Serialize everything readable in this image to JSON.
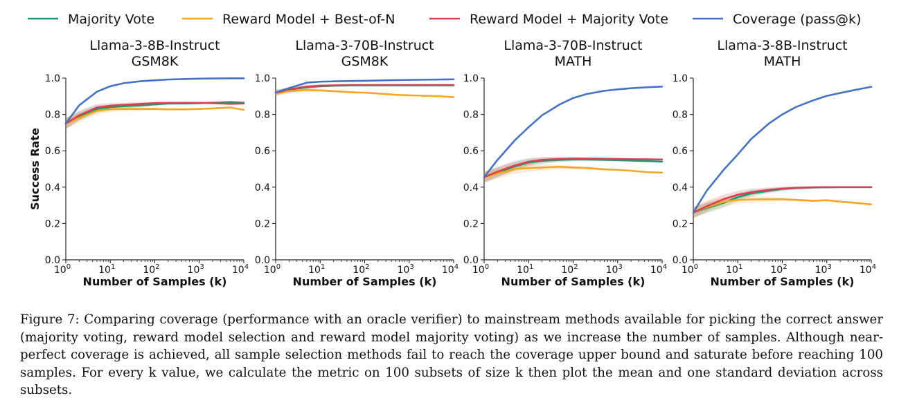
{
  "legend": [
    {
      "label": "Majority Vote",
      "color": "#1a9a71"
    },
    {
      "label": "Reward Model + Best-of-N",
      "color": "#f5a623"
    },
    {
      "label": "Reward Model + Majority Vote",
      "color": "#d94052"
    },
    {
      "label": "Coverage (pass@k)",
      "color": "#4472c4"
    }
  ],
  "caption": "Figure 7: Comparing coverage (performance with an oracle verifier) to mainstream methods available for picking the correct answer (majority voting, reward model selection and reward model majority voting) as we increase the number of samples. Although near-perfect coverage is achieved, all sample selection methods fail to reach the coverage upper bound and saturate before reaching 100 samples. For every k value, we calculate the metric on 100 subsets of size k then plot the mean and one standard deviation across subsets.",
  "chart_data": [
    {
      "type": "line",
      "title_line1": "Llama-3-8B-Instruct",
      "title_line2": "GSM8K",
      "xlabel": "Number of Samples (k)",
      "ylabel": "Success Rate",
      "xscale": "log",
      "xlim": [
        1,
        10000
      ],
      "ylim": [
        0,
        1
      ],
      "x": [
        1,
        2,
        5,
        10,
        20,
        50,
        100,
        200,
        500,
        1000,
        2000,
        5000,
        10000
      ],
      "series": [
        {
          "name": "Majority Vote",
          "color": "#1a9a71",
          "values": [
            0.75,
            0.79,
            0.83,
            0.84,
            0.845,
            0.85,
            0.855,
            0.86,
            0.86,
            0.862,
            0.865,
            0.868,
            0.865
          ],
          "std": [
            0.03,
            0.025,
            0.02,
            0.015,
            0.012,
            0.01,
            0.008,
            0.006,
            0.005,
            0.004,
            0.003,
            0.003,
            0.003
          ]
        },
        {
          "name": "Reward Model + Best-of-N",
          "color": "#f5a623",
          "values": [
            0.75,
            0.78,
            0.82,
            0.828,
            0.83,
            0.83,
            0.83,
            0.828,
            0.828,
            0.83,
            0.833,
            0.838,
            0.825
          ],
          "std": [
            0.03,
            0.025,
            0.02,
            0.015,
            0.012,
            0.01,
            0.008,
            0.006,
            0.005,
            0.004,
            0.003,
            0.003,
            0.003
          ]
        },
        {
          "name": "Reward Model + Majority Vote",
          "color": "#d94052",
          "values": [
            0.75,
            0.795,
            0.838,
            0.848,
            0.853,
            0.858,
            0.862,
            0.864,
            0.864,
            0.864,
            0.862,
            0.858,
            0.86
          ],
          "std": [
            0.03,
            0.025,
            0.02,
            0.015,
            0.012,
            0.01,
            0.008,
            0.006,
            0.005,
            0.004,
            0.003,
            0.003,
            0.003
          ]
        },
        {
          "name": "Coverage (pass@k)",
          "color": "#4472c4",
          "values": [
            0.75,
            0.85,
            0.925,
            0.955,
            0.972,
            0.983,
            0.988,
            0.992,
            0.995,
            0.997,
            0.998,
            0.999,
            0.999
          ]
        }
      ]
    },
    {
      "type": "line",
      "title_line1": "Llama-3-70B-Instruct",
      "title_line2": "GSM8K",
      "xlabel": "Number of Samples (k)",
      "ylabel": "",
      "xscale": "log",
      "xlim": [
        1,
        10000
      ],
      "ylim": [
        0,
        1
      ],
      "x": [
        1,
        2,
        5,
        10,
        20,
        50,
        100,
        200,
        500,
        1000,
        2000,
        5000,
        10000
      ],
      "series": [
        {
          "name": "Majority Vote",
          "color": "#1a9a71",
          "values": [
            0.92,
            0.935,
            0.95,
            0.955,
            0.958,
            0.96,
            0.96,
            0.96,
            0.96,
            0.96,
            0.96,
            0.96,
            0.96
          ],
          "std": [
            0.015,
            0.012,
            0.01,
            0.008,
            0.006,
            0.005,
            0.004,
            0.003,
            0.003,
            0.003,
            0.002,
            0.002,
            0.002
          ]
        },
        {
          "name": "Reward Model + Best-of-N",
          "color": "#f5a623",
          "values": [
            0.915,
            0.928,
            0.935,
            0.932,
            0.928,
            0.922,
            0.92,
            0.915,
            0.908,
            0.905,
            0.903,
            0.9,
            0.895
          ],
          "std": [
            0.015,
            0.012,
            0.01,
            0.008,
            0.006,
            0.005,
            0.004,
            0.003,
            0.003,
            0.003,
            0.002,
            0.002,
            0.002
          ]
        },
        {
          "name": "Reward Model + Majority Vote",
          "color": "#d94052",
          "values": [
            0.92,
            0.938,
            0.953,
            0.958,
            0.96,
            0.962,
            0.962,
            0.962,
            0.962,
            0.962,
            0.962,
            0.962,
            0.962
          ],
          "std": [
            0.015,
            0.012,
            0.01,
            0.008,
            0.006,
            0.005,
            0.004,
            0.003,
            0.003,
            0.003,
            0.002,
            0.002,
            0.002
          ]
        },
        {
          "name": "Coverage (pass@k)",
          "color": "#4472c4",
          "values": [
            0.92,
            0.945,
            0.975,
            0.98,
            0.982,
            0.984,
            0.985,
            0.987,
            0.989,
            0.99,
            0.991,
            0.992,
            0.993
          ]
        }
      ]
    },
    {
      "type": "line",
      "title_line1": "Llama-3-70B-Instruct",
      "title_line2": "MATH",
      "xlabel": "Number of Samples (k)",
      "ylabel": "",
      "xscale": "log",
      "xlim": [
        1,
        10000
      ],
      "ylim": [
        0,
        1
      ],
      "x": [
        1,
        2,
        5,
        10,
        20,
        50,
        100,
        200,
        500,
        1000,
        2000,
        5000,
        10000
      ],
      "series": [
        {
          "name": "Majority Vote",
          "color": "#1a9a71",
          "values": [
            0.455,
            0.48,
            0.515,
            0.535,
            0.545,
            0.55,
            0.552,
            0.552,
            0.55,
            0.548,
            0.546,
            0.543,
            0.54
          ],
          "std": [
            0.03,
            0.028,
            0.025,
            0.02,
            0.016,
            0.012,
            0.01,
            0.008,
            0.006,
            0.005,
            0.004,
            0.003,
            0.003
          ]
        },
        {
          "name": "Reward Model + Best-of-N",
          "color": "#f5a623",
          "values": [
            0.455,
            0.475,
            0.5,
            0.505,
            0.508,
            0.512,
            0.508,
            0.505,
            0.498,
            0.495,
            0.49,
            0.482,
            0.48
          ],
          "std": [
            0.03,
            0.028,
            0.025,
            0.02,
            0.016,
            0.012,
            0.01,
            0.008,
            0.006,
            0.005,
            0.004,
            0.003,
            0.003
          ]
        },
        {
          "name": "Reward Model + Majority Vote",
          "color": "#d94052",
          "values": [
            0.455,
            0.485,
            0.52,
            0.54,
            0.55,
            0.555,
            0.557,
            0.557,
            0.556,
            0.555,
            0.554,
            0.553,
            0.552
          ],
          "std": [
            0.03,
            0.028,
            0.025,
            0.02,
            0.016,
            0.012,
            0.01,
            0.008,
            0.006,
            0.005,
            0.004,
            0.003,
            0.003
          ]
        },
        {
          "name": "Coverage (pass@k)",
          "color": "#4472c4",
          "values": [
            0.455,
            0.55,
            0.66,
            0.73,
            0.795,
            0.855,
            0.89,
            0.912,
            0.93,
            0.938,
            0.944,
            0.95,
            0.953
          ]
        }
      ]
    },
    {
      "type": "line",
      "title_line1": "Llama-3-8B-Instruct",
      "title_line2": "MATH",
      "xlabel": "Number of Samples (k)",
      "ylabel": "",
      "xscale": "log",
      "xlim": [
        1,
        10000
      ],
      "ylim": [
        0,
        1
      ],
      "x": [
        1,
        2,
        5,
        10,
        20,
        50,
        100,
        200,
        500,
        1000,
        2000,
        5000,
        10000
      ],
      "series": [
        {
          "name": "Majority Vote",
          "color": "#1a9a71",
          "values": [
            0.26,
            0.285,
            0.315,
            0.345,
            0.365,
            0.38,
            0.39,
            0.395,
            0.398,
            0.399,
            0.4,
            0.4,
            0.4
          ],
          "std": [
            0.03,
            0.028,
            0.025,
            0.022,
            0.018,
            0.014,
            0.01,
            0.008,
            0.006,
            0.005,
            0.004,
            0.003,
            0.003
          ]
        },
        {
          "name": "Reward Model + Best-of-N",
          "color": "#f5a623",
          "values": [
            0.26,
            0.29,
            0.32,
            0.33,
            0.332,
            0.333,
            0.333,
            0.33,
            0.325,
            0.328,
            0.32,
            0.312,
            0.305
          ],
          "std": [
            0.03,
            0.028,
            0.025,
            0.022,
            0.018,
            0.014,
            0.01,
            0.008,
            0.006,
            0.005,
            0.004,
            0.003,
            0.003
          ]
        },
        {
          "name": "Reward Model + Majority Vote",
          "color": "#d94052",
          "values": [
            0.26,
            0.295,
            0.335,
            0.358,
            0.372,
            0.385,
            0.392,
            0.396,
            0.399,
            0.4,
            0.4,
            0.4,
            0.4
          ],
          "std": [
            0.03,
            0.028,
            0.025,
            0.022,
            0.018,
            0.014,
            0.01,
            0.008,
            0.006,
            0.005,
            0.004,
            0.003,
            0.003
          ]
        },
        {
          "name": "Coverage (pass@k)",
          "color": "#4472c4",
          "values": [
            0.26,
            0.38,
            0.5,
            0.58,
            0.665,
            0.75,
            0.8,
            0.84,
            0.878,
            0.902,
            0.918,
            0.938,
            0.952
          ]
        }
      ]
    }
  ]
}
